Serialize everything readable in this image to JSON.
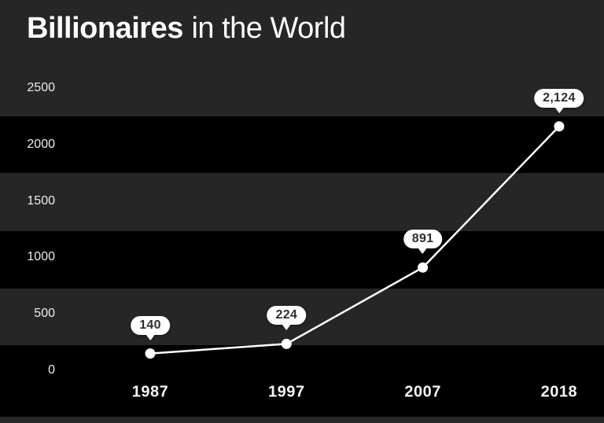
{
  "header": {
    "title_bold": "Billionaires",
    "title_rest": "in the World"
  },
  "colors": {
    "background": "#262626",
    "band_black": "#000000",
    "line": "#ffffff",
    "point_fill": "#ffffff",
    "bubble_background": "#ffffff",
    "bubble_text": "#2e2e2e",
    "tick_text": "#ededed",
    "x_label_text": "#f5f5f5",
    "title_text": "#fcfcfc"
  },
  "chart_data": {
    "type": "line",
    "title": "Billionaires in the World",
    "categories": [
      "1987",
      "1997",
      "2007",
      "2018"
    ],
    "values": [
      140,
      224,
      891,
      2124
    ],
    "point_labels": [
      "140",
      "224",
      "891",
      "2,124"
    ],
    "y_ticks": [
      "0",
      "500",
      "1000",
      "1500",
      "2000",
      "2500"
    ],
    "ylim": [
      0,
      2500
    ],
    "xlabel": "",
    "ylabel": "",
    "legend": "none",
    "grid": "alternating horizontal bands"
  }
}
